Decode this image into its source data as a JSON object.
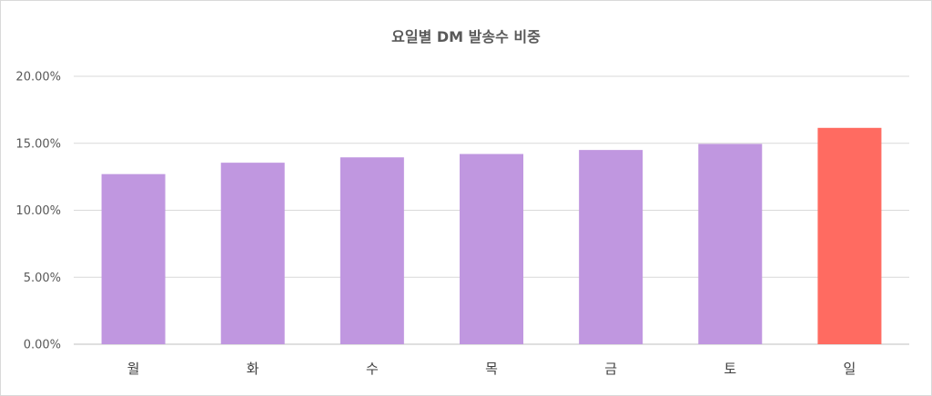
{
  "chart_data": {
    "type": "bar",
    "title": "요일별 DM 발송수 비중",
    "xlabel": "",
    "ylabel": "",
    "categories": [
      "월",
      "화",
      "수",
      "목",
      "금",
      "토",
      "일"
    ],
    "values": [
      12.7,
      13.55,
      13.95,
      14.2,
      14.5,
      14.95,
      16.15
    ],
    "ylim": [
      0,
      20
    ],
    "yticks": [
      0,
      5,
      10,
      15,
      20
    ],
    "ytick_labels": [
      "0.00%",
      "5.00%",
      "10.00%",
      "15.00%",
      "20.00%"
    ],
    "grid": true,
    "legend": "none",
    "bar_color": "#c097e0",
    "highlight_color": "#ff6b61",
    "highlight_index": 6
  }
}
